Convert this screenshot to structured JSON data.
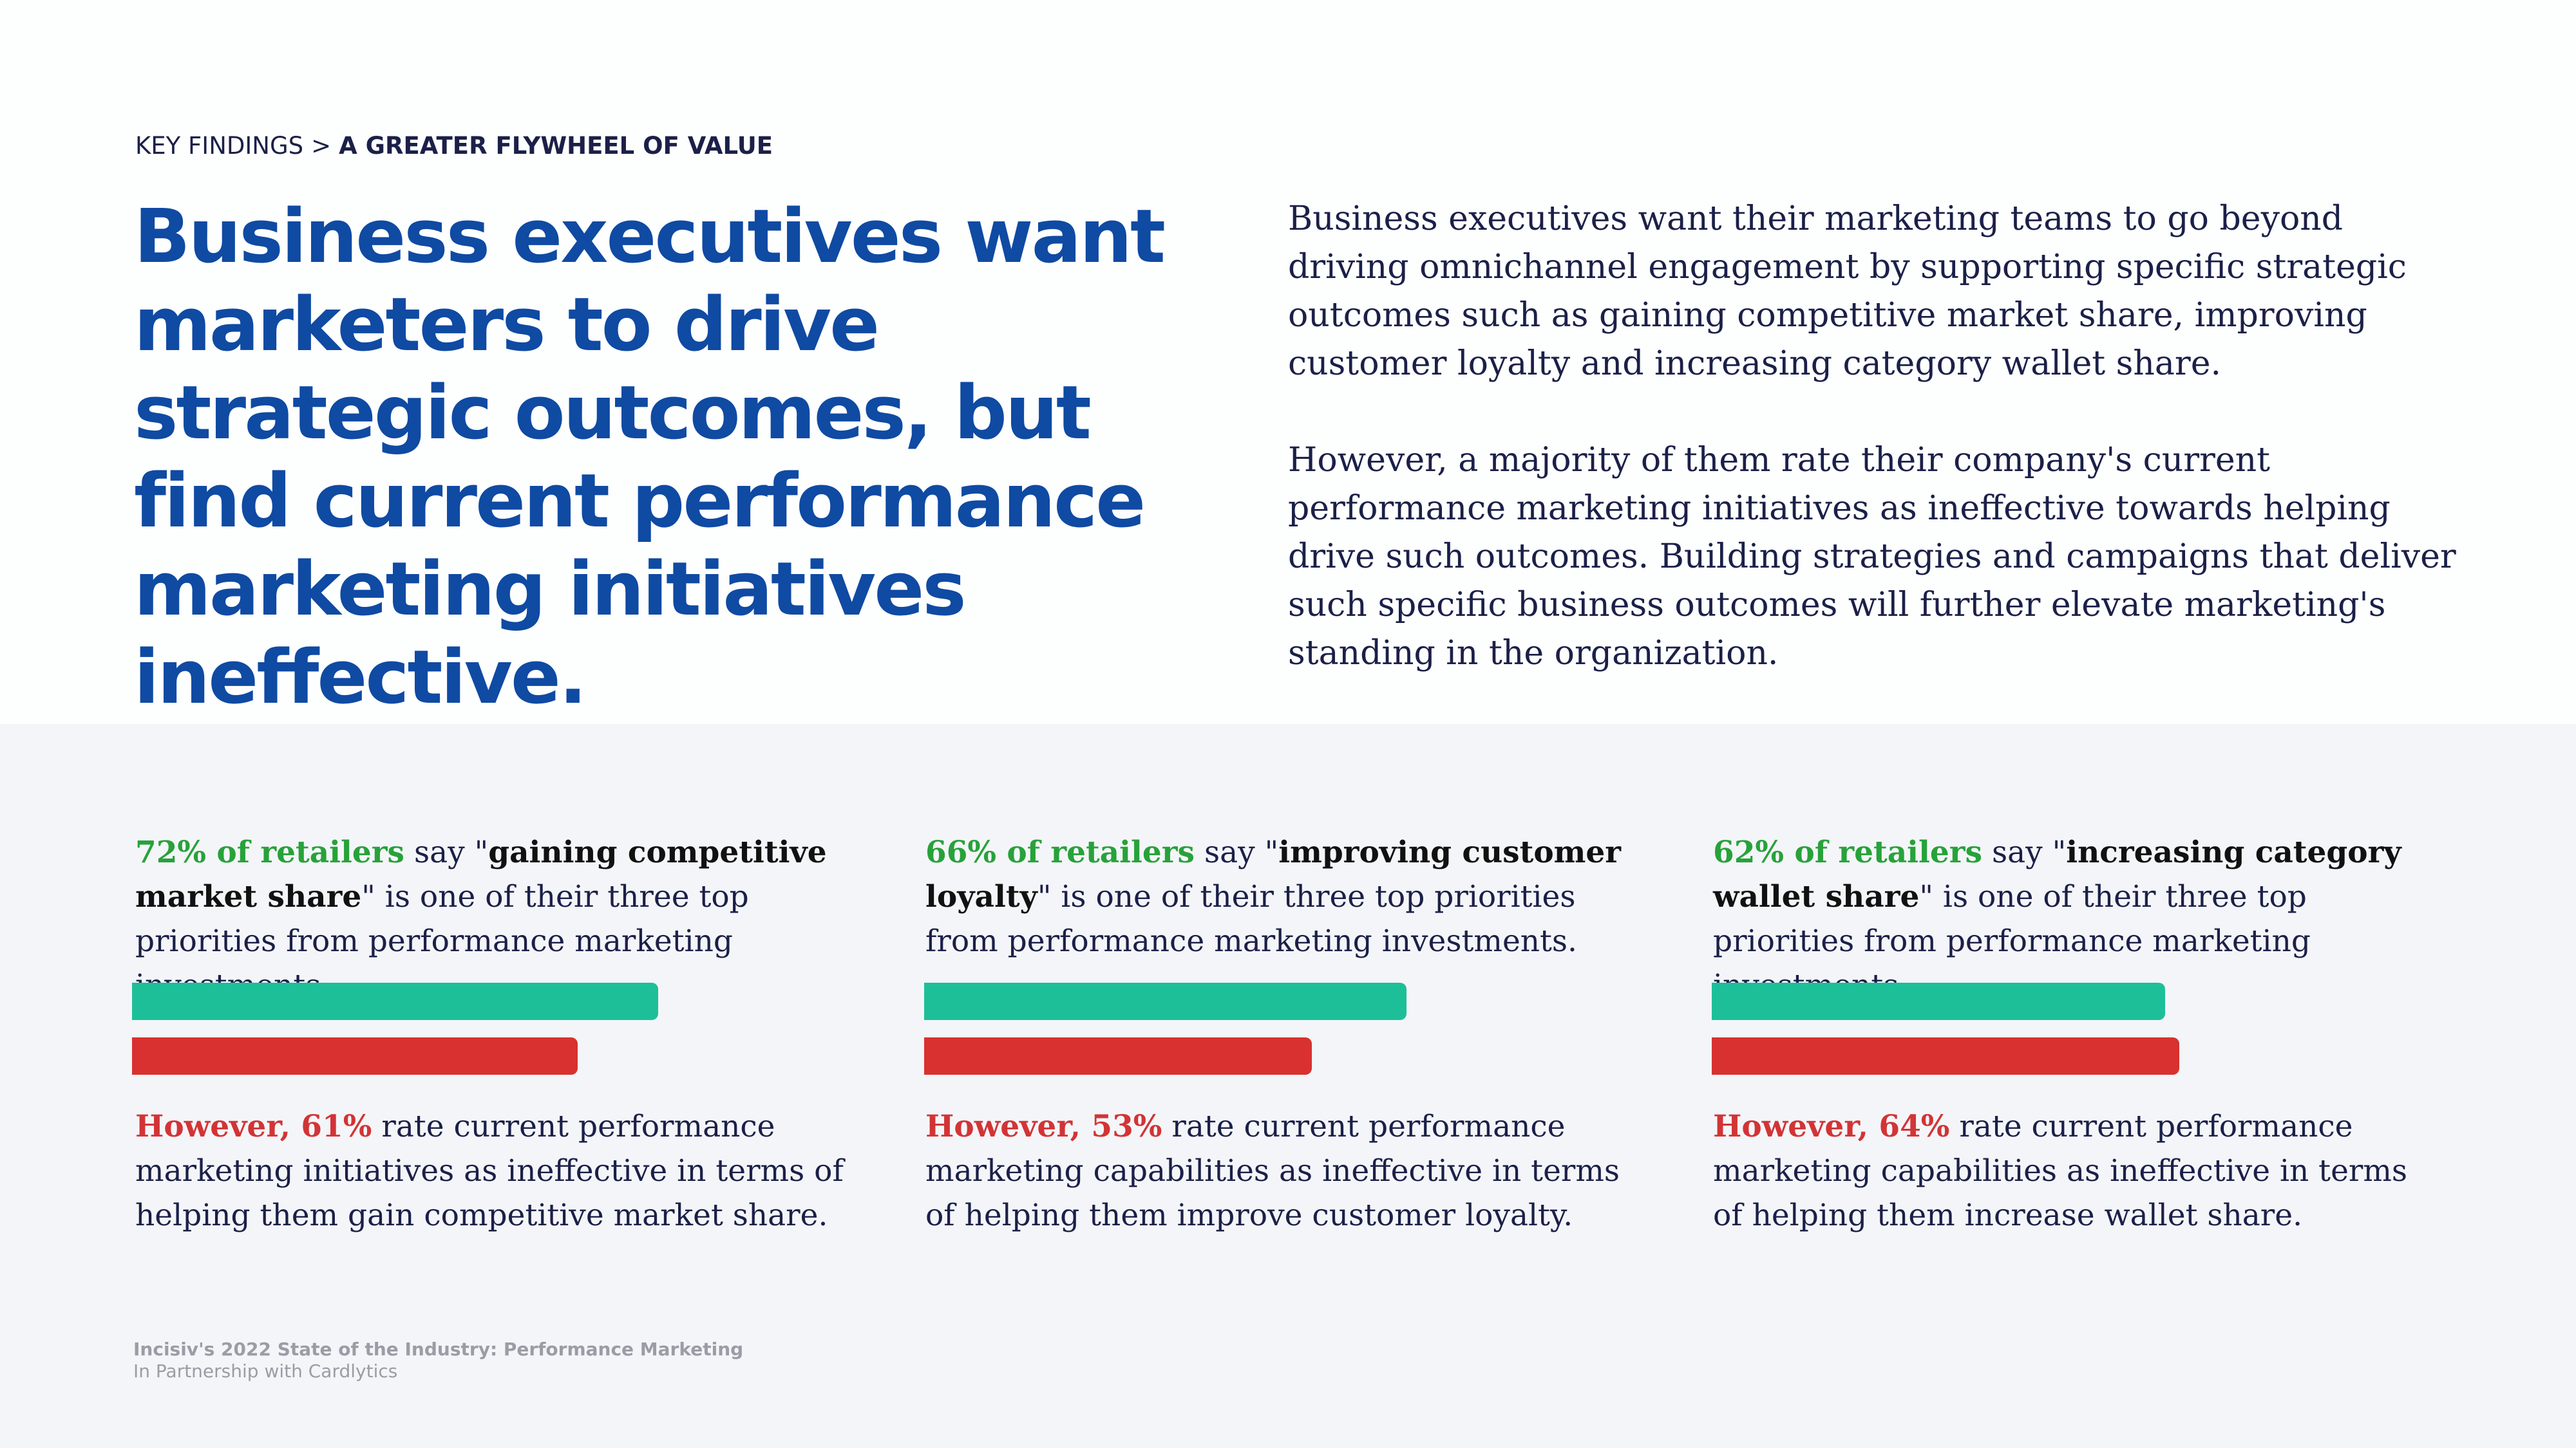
{
  "breadcrumb": {
    "parent": "KEY FINDINGS",
    "separator": ">",
    "current": "A GREATER FLYWHEEL OF VALUE"
  },
  "headline": "Business executives want marketers to drive strategic outcomes, but find current performance marketing initiatives ineffective.",
  "intro": {
    "paragraph_1": "Business executives want their marketing teams to go beyond driving omnichannel engagement by supporting specific strategic outcomes such as gaining competitive market share, improving customer loyalty and increasing category wallet share.",
    "paragraph_2": "However, a majority of them rate their company's current performance marketing initiatives as ineffective towards helping drive such outcomes. Building strategies and campaigns that deliver such specific business outcomes will further elevate marketing's standing in the organization."
  },
  "stats": [
    {
      "priority_pct": "72% of retailers",
      "say": " say \"",
      "term": "gaining competitive market share",
      "rest": "\" is one of their three top priorities from performance marketing investments.",
      "priority_value": 72,
      "ineffective_value": 61,
      "however": "However, 61%",
      "ineffective_text": " rate current performance marketing initiatives as ineffective in terms of helping them gain competitive market share."
    },
    {
      "priority_pct": "66% of retailers",
      "say": " say \"",
      "term": "improving customer loyalty",
      "rest": "\" is one of their three top priorities from performance marketing investments.",
      "priority_value": 66,
      "ineffective_value": 53,
      "however": "However, 53%",
      "ineffective_text": " rate current performance marketing capabilities as ineffective in terms of helping them improve customer loyalty."
    },
    {
      "priority_pct": "62% of retailers",
      "say": " say \"",
      "term": "increasing category wallet share",
      "rest": "\" is one of their three top priorities from performance marketing investments.",
      "priority_value": 62,
      "ineffective_value": 64,
      "however": "However, 64%",
      "ineffective_text": " rate current performance marketing capabilities as ineffective in terms of helping them increase wallet share."
    }
  ],
  "colors": {
    "headline": "#0f4aa3",
    "priority_bar": "#1dbf99",
    "ineffective_bar": "#d8312f",
    "priority_text": "#27a23a",
    "ineffective_text": "#d23436"
  },
  "source": {
    "title": "Incisiv's 2022 State of the Industry: Performance Marketing",
    "partner": "In Partnership with Cardlytics"
  }
}
